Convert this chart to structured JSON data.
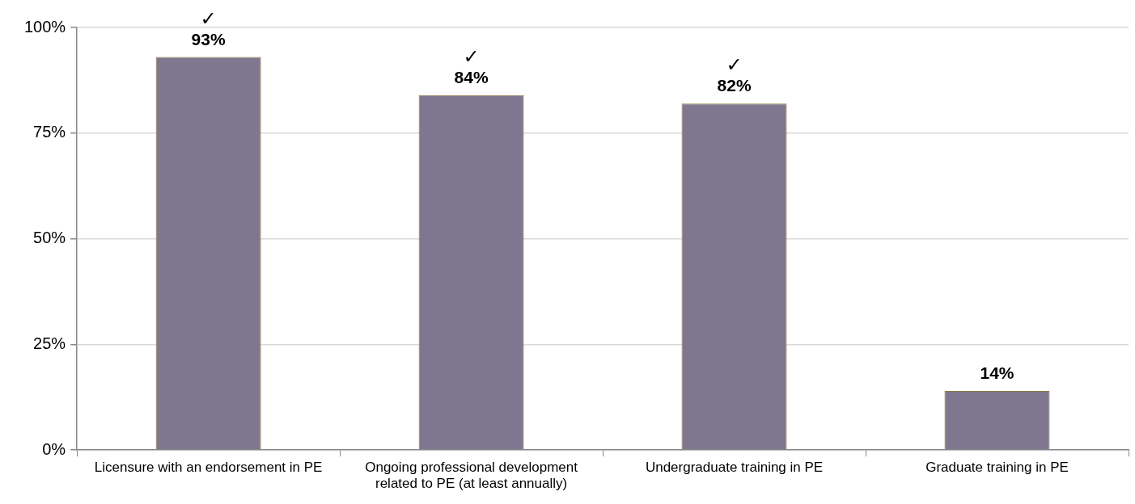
{
  "chart_data": {
    "type": "bar",
    "categories": [
      "Licensure with an endorsement in PE",
      "Ongoing professional development related to PE (at least annually)",
      "Undergraduate training in PE",
      "Graduate training in PE"
    ],
    "values": [
      93,
      84,
      82,
      14
    ],
    "color": "#7f778f",
    "value_labels": [
      "93%",
      "84%",
      "82%",
      "14%"
    ],
    "ylim": [
      0,
      100
    ],
    "yticks": [
      {
        "value": 0,
        "label": "0%"
      },
      {
        "value": 25,
        "label": "25%"
      },
      {
        "value": 50,
        "label": "50%"
      },
      {
        "value": 75,
        "label": "75%"
      },
      {
        "value": 100,
        "label": "100%"
      }
    ],
    "grid": "y",
    "annotations": [
      {
        "text": "✓",
        "x": "Licensure with an endorsement in PE",
        "y": 93
      },
      {
        "text": "✓",
        "x": "Ongoing professional development related to PE (at least annually)",
        "y": 84
      },
      {
        "text": "✓",
        "x": "Undergraduate training in PE",
        "y": 82
      }
    ]
  }
}
